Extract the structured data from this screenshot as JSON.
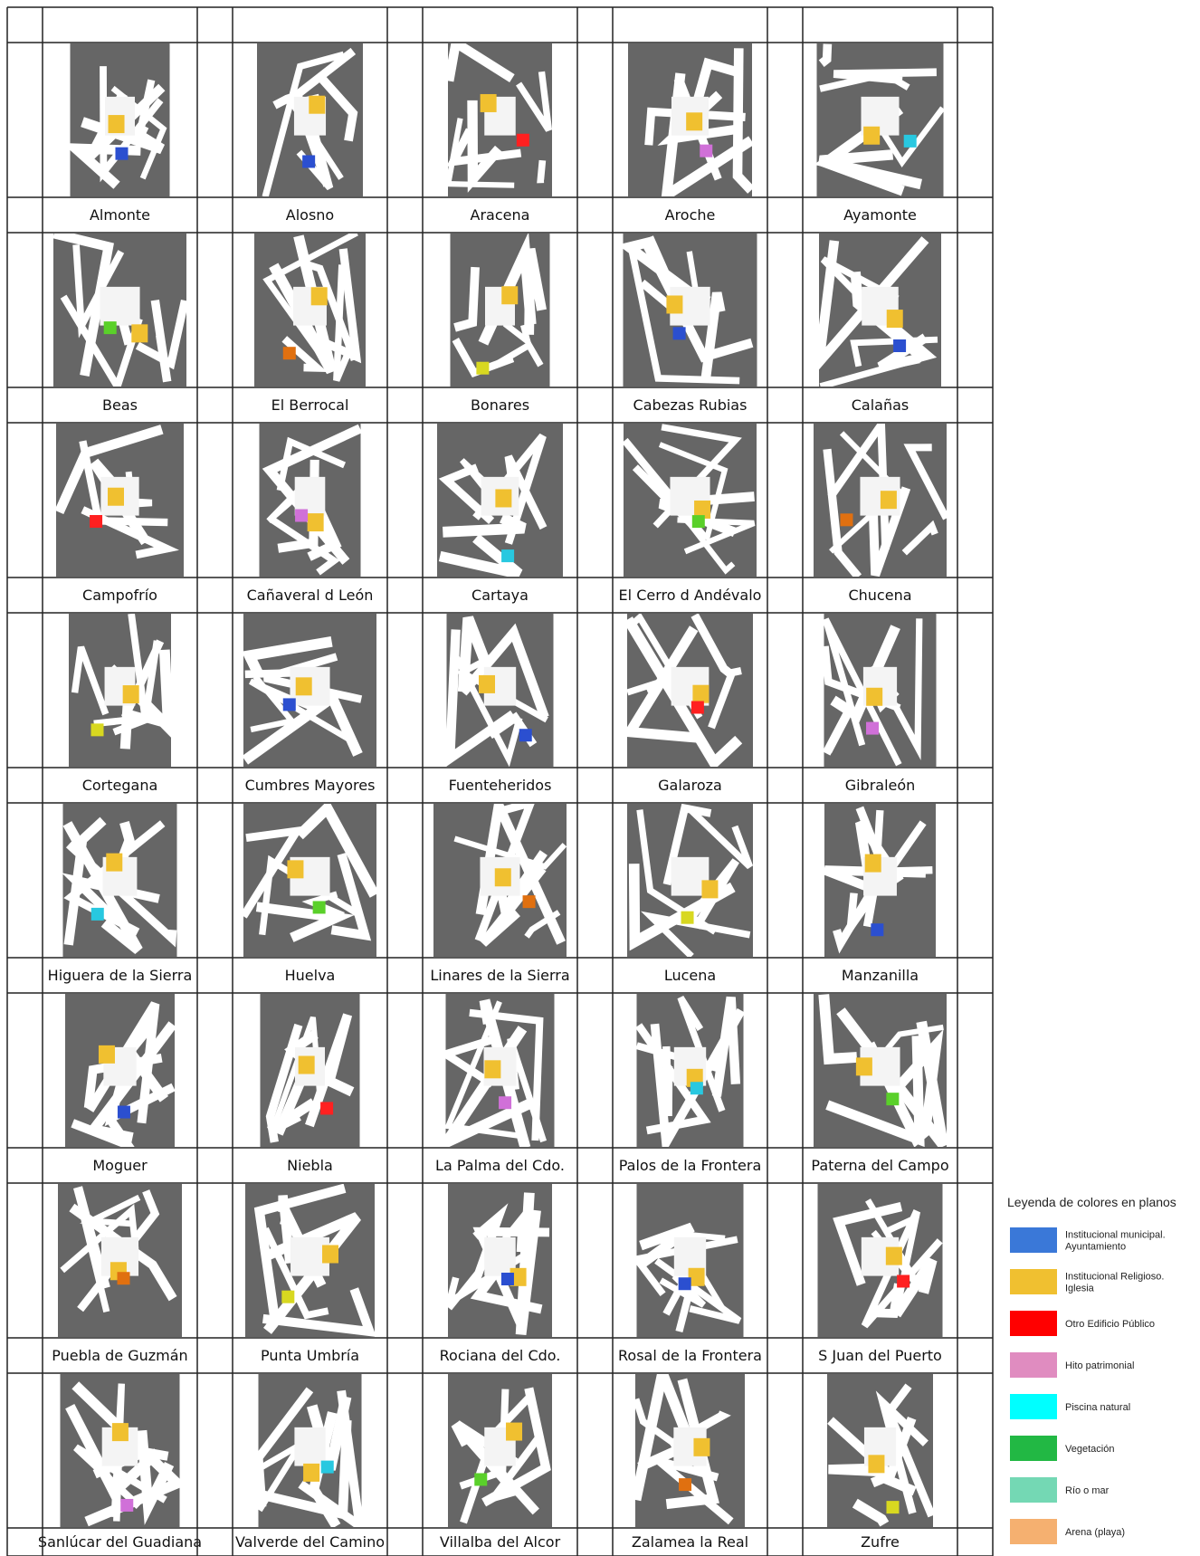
{
  "towns": [
    "Almonte",
    "Alosno",
    "Aracena",
    "Aroche",
    "Ayamonte",
    "Beas",
    "El Berrocal",
    "Bonares",
    "Cabezas Rubias",
    "Calañas",
    "Campofrío",
    "Cañaveral d León",
    "Cartaya",
    "El Cerro d Andévalo",
    "Chucena",
    "Cortegana",
    "Cumbres Mayores",
    "Fuenteheridos",
    "Galaroza",
    "Gibraleón",
    "Higuera de la Sierra",
    "Huelva",
    "Linares de la Sierra",
    "Lucena",
    "Manzanilla",
    "Moguer",
    "Niebla",
    "La Palma del Cdo.",
    "Palos de la Frontera",
    "Paterna del Campo",
    "Puebla de Guzmán",
    "Punta Umbría",
    "Rociana del Cdo.",
    "Rosal de la Frontera",
    "S Juan del Puerto",
    "Sanlúcar del Guadiana",
    "Valverde del Camino",
    "Villalba del Alcor",
    "Zalamea la Real",
    "Zufre"
  ],
  "legend": {
    "title": "Leyenda de colores en planos",
    "items": [
      {
        "lines": [
          "Institucional municipal.",
          "Ayuntamiento"
        ],
        "color": "#3a78d8"
      },
      {
        "lines": [
          "Institucional Religioso.",
          "Iglesia"
        ],
        "color": "#f0c030"
      },
      {
        "lines": [
          "Otro Edificio Público"
        ],
        "color": "#ff0000"
      },
      {
        "lines": [
          "Hito patrimonial"
        ],
        "color": "#e08cc0"
      },
      {
        "lines": [
          "Piscina natural"
        ],
        "color": "#00ffff"
      },
      {
        "lines": [
          "Vegetación"
        ],
        "color": "#22b844"
      },
      {
        "lines": [
          "Río o mar"
        ],
        "color": "#74d8b4"
      },
      {
        "lines": [
          "Arena (playa)"
        ],
        "color": "#f5b070"
      }
    ]
  }
}
